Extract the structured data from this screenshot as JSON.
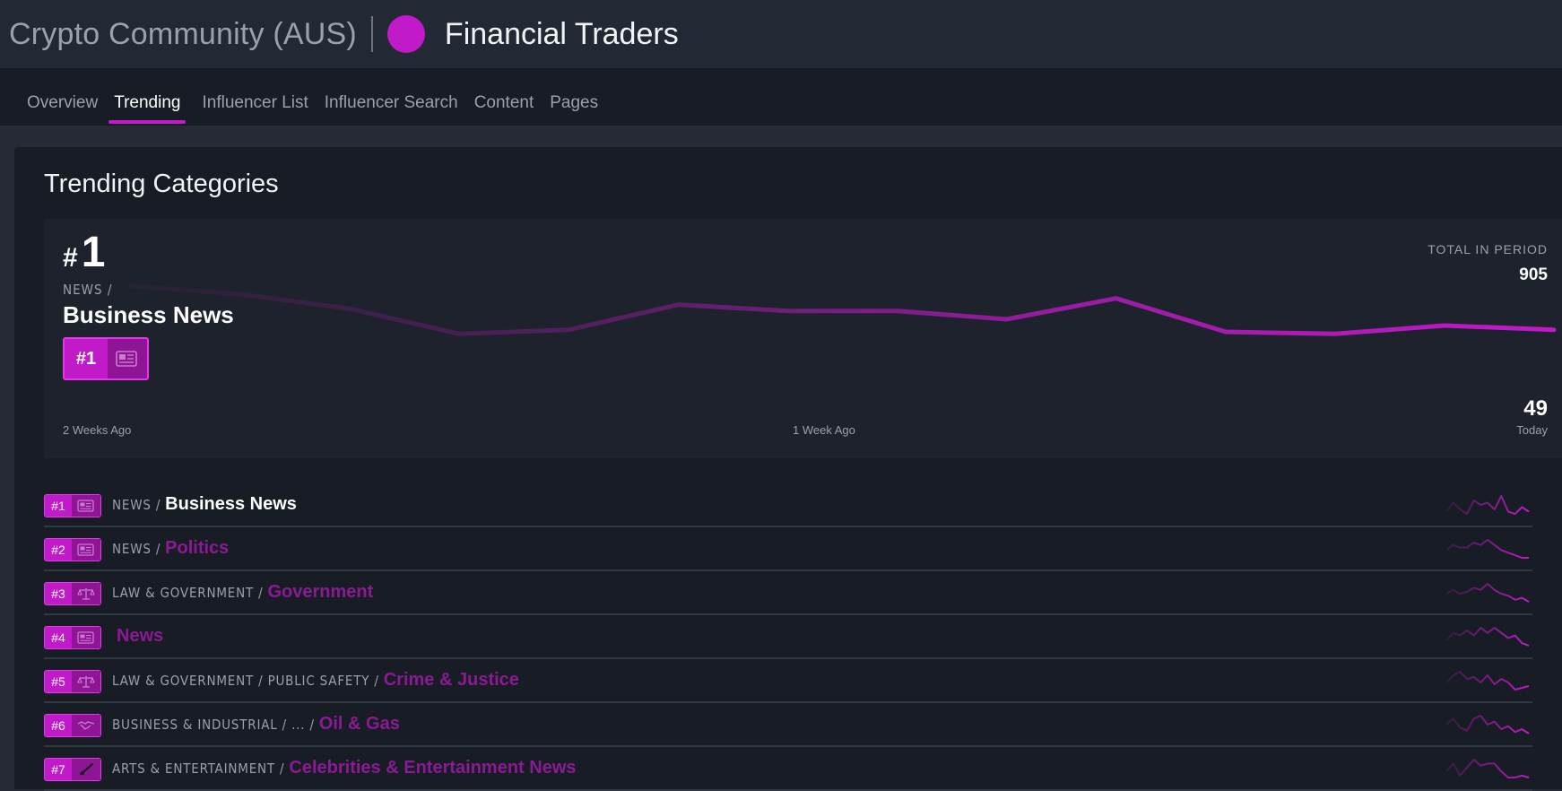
{
  "header": {
    "app_title": "Crypto Community (AUS)",
    "group_title": "Financial Traders",
    "group_color": "#c11ac9"
  },
  "tabs": [
    {
      "label": "Overview",
      "active": false
    },
    {
      "label": "Trending",
      "active": true
    },
    {
      "label": "Influencer List",
      "active": false
    },
    {
      "label": "Influencer Search",
      "active": false
    },
    {
      "label": "Content",
      "active": false
    },
    {
      "label": "Pages",
      "active": false
    }
  ],
  "section_title": "Trending Categories",
  "hero": {
    "hash": "#",
    "rank": "1",
    "path": "NEWS /",
    "name": "Business News",
    "badge_rank": "#1",
    "badge_icon": "newspaper-icon",
    "total_label": "TOTAL IN PERIOD",
    "total_value": "905",
    "today_value": "49",
    "today_label": "Today",
    "x_start": "2 Weeks Ago",
    "x_mid": "1 Week Ago",
    "series": [
      74,
      70,
      63,
      51,
      53,
      65,
      62,
      62,
      58,
      68,
      52,
      51,
      55,
      53
    ]
  },
  "rows": [
    {
      "rank": "#1",
      "path": "NEWS /",
      "name": "Business News",
      "icon": "newspaper-icon",
      "primary": true,
      "spark": [
        5,
        9,
        6,
        4,
        10,
        8,
        9,
        6,
        12,
        5,
        4,
        7,
        5
      ]
    },
    {
      "rank": "#2",
      "path": "NEWS /",
      "name": "Politics",
      "icon": "newspaper-icon",
      "primary": false,
      "spark": [
        6,
        8,
        7,
        7,
        9,
        8,
        10,
        8,
        6,
        5,
        4,
        3,
        3
      ]
    },
    {
      "rank": "#3",
      "path": "LAW & GOVERNMENT /",
      "name": "Government",
      "icon": "scales-icon",
      "primary": false,
      "spark": [
        7,
        9,
        7,
        8,
        10,
        9,
        12,
        9,
        7,
        6,
        4,
        5,
        3
      ]
    },
    {
      "rank": "#4",
      "path": "",
      "name": "News",
      "icon": "newspaper-icon",
      "primary": false,
      "spark": [
        5,
        8,
        7,
        9,
        7,
        10,
        8,
        10,
        8,
        6,
        7,
        4,
        3
      ]
    },
    {
      "rank": "#5",
      "path": "LAW & GOVERNMENT / PUBLIC SAFETY /",
      "name": "Crime & Justice",
      "icon": "scales-icon",
      "primary": false,
      "spark": [
        6,
        10,
        12,
        8,
        9,
        6,
        10,
        5,
        8,
        6,
        2,
        3,
        4
      ]
    },
    {
      "rank": "#6",
      "path": "BUSINESS & INDUSTRIAL / ... /",
      "name": "Oil & Gas",
      "icon": "handshake-icon",
      "primary": false,
      "spark": [
        8,
        12,
        6,
        4,
        12,
        14,
        8,
        10,
        5,
        7,
        3,
        5,
        2
      ]
    },
    {
      "rank": "#7",
      "path": "ARTS & ENTERTAINMENT /",
      "name": "Celebrities & Entertainment News",
      "icon": "brush-icon",
      "primary": false,
      "spark": [
        6,
        10,
        4,
        8,
        12,
        9,
        10,
        10,
        6,
        3,
        3,
        4,
        3
      ]
    }
  ],
  "colors": {
    "accent": "#c11ac9",
    "accent_dark": "#8f1496",
    "category_name": "#8c1a96"
  }
}
